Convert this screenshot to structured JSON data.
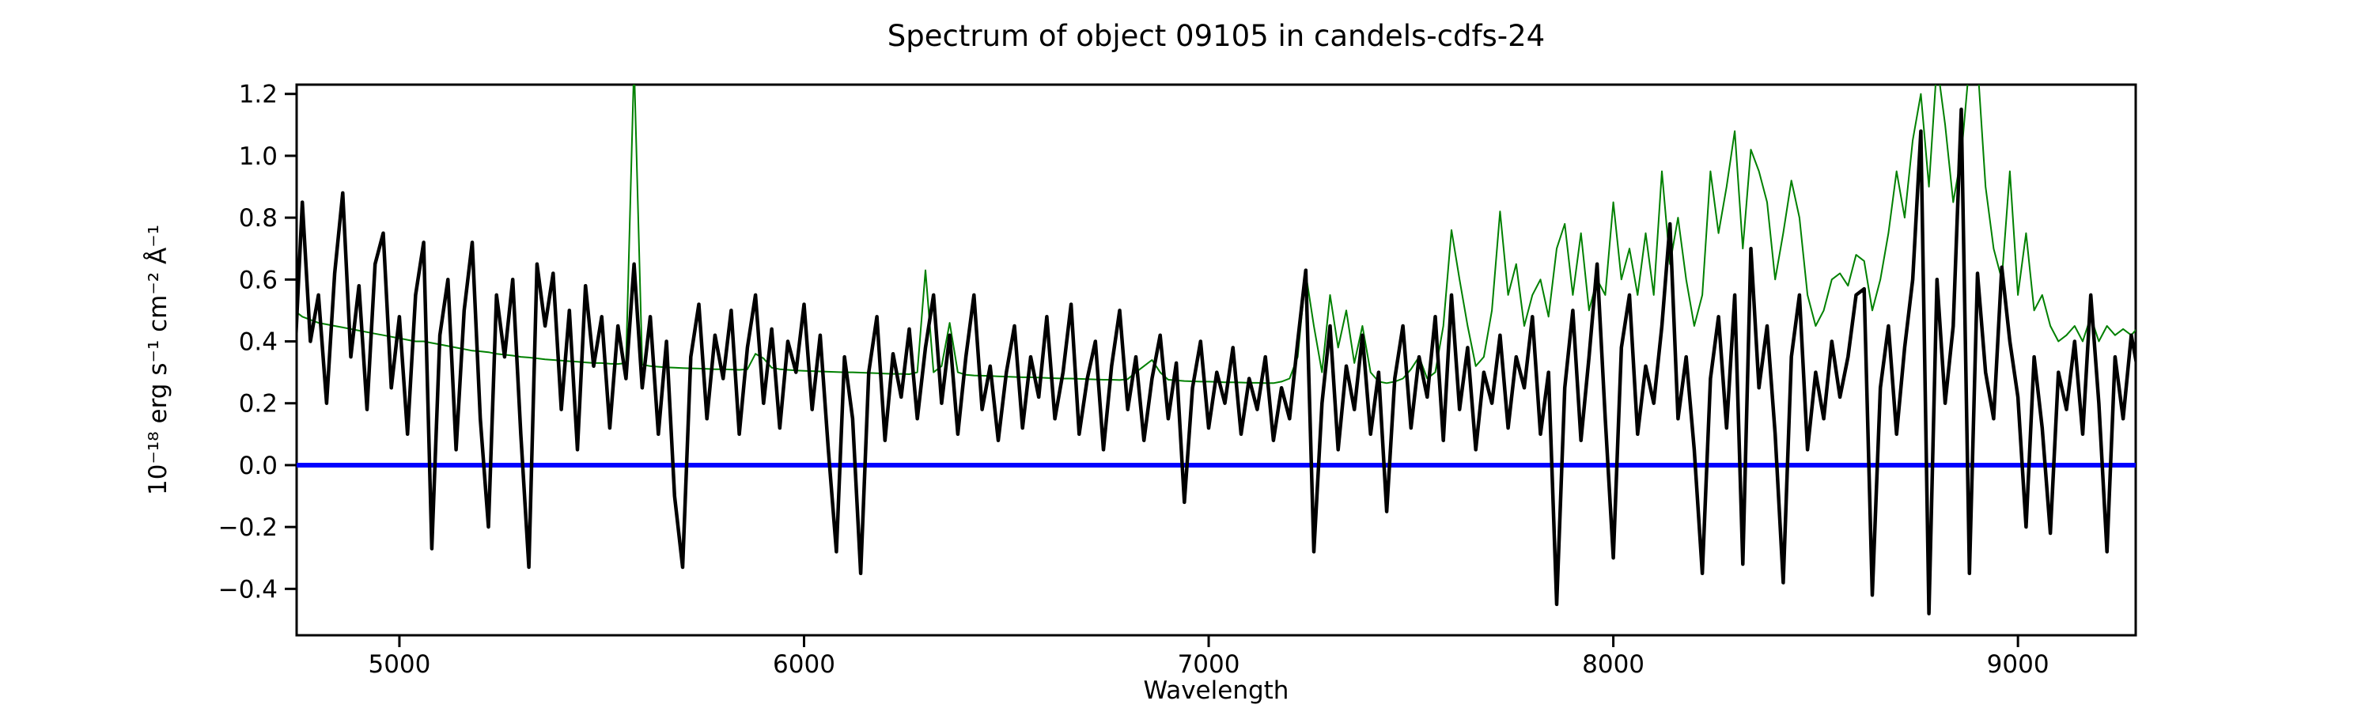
{
  "figure": {
    "title": "Spectrum of object 09105 in candels-cdfs-24"
  },
  "chart_data": {
    "type": "line",
    "title": "Spectrum of object 09105 in candels-cdfs-24",
    "xlabel": "Wavelength",
    "ylabel": "10⁻¹⁸ erg s⁻¹ cm⁻² Å⁻¹",
    "xlim": [
      4746,
      9291
    ],
    "ylim": [
      -0.55,
      1.23
    ],
    "x_ticks": [
      5000,
      6000,
      7000,
      8000,
      9000
    ],
    "x_tick_labels": [
      "5000",
      "6000",
      "7000",
      "8000",
      "9000"
    ],
    "y_ticks": [
      -0.4,
      -0.2,
      0,
      0.2,
      0.4,
      0.6,
      0.8,
      1,
      1.2
    ],
    "y_tick_labels": [
      "−0.4",
      "−0.2",
      "0.0",
      "0.2",
      "0.4",
      "0.6",
      "0.8",
      "1.0",
      "1.2"
    ],
    "grid": false,
    "legend": false,
    "background": "#ffffff",
    "wavelength_start": 4740,
    "wavelength_step": 20,
    "zero_line": {
      "y": 0,
      "color": "#0000ff",
      "linewidth": 6
    },
    "series": [
      {
        "name": "flux",
        "color": "#000000",
        "linewidth": 4.5,
        "values": [
          0.3,
          0.85,
          0.4,
          0.55,
          0.2,
          0.62,
          0.88,
          0.35,
          0.58,
          0.18,
          0.65,
          0.75,
          0.25,
          0.48,
          0.1,
          0.55,
          0.72,
          -0.27,
          0.42,
          0.6,
          0.05,
          0.5,
          0.72,
          0.15,
          -0.2,
          0.55,
          0.35,
          0.6,
          0.1,
          -0.33,
          0.65,
          0.45,
          0.62,
          0.18,
          0.5,
          0.05,
          0.58,
          0.32,
          0.48,
          0.12,
          0.45,
          0.28,
          0.65,
          0.25,
          0.48,
          0.1,
          0.4,
          -0.1,
          -0.33,
          0.35,
          0.52,
          0.15,
          0.42,
          0.28,
          0.5,
          0.1,
          0.38,
          0.55,
          0.2,
          0.44,
          0.12,
          0.4,
          0.3,
          0.52,
          0.18,
          0.42,
          0.05,
          -0.28,
          0.35,
          0.15,
          -0.35,
          0.3,
          0.48,
          0.08,
          0.36,
          0.22,
          0.44,
          0.15,
          0.38,
          0.55,
          0.2,
          0.42,
          0.1,
          0.35,
          0.55,
          0.18,
          0.32,
          0.08,
          0.3,
          0.45,
          0.12,
          0.35,
          0.22,
          0.48,
          0.15,
          0.3,
          0.52,
          0.1,
          0.28,
          0.4,
          0.05,
          0.32,
          0.5,
          0.18,
          0.35,
          0.08,
          0.28,
          0.42,
          0.15,
          0.33,
          -0.12,
          0.25,
          0.4,
          0.12,
          0.3,
          0.2,
          0.38,
          0.1,
          0.28,
          0.18,
          0.35,
          0.08,
          0.25,
          0.15,
          0.4,
          0.63,
          -0.28,
          0.2,
          0.45,
          0.05,
          0.32,
          0.18,
          0.42,
          0.1,
          0.3,
          -0.15,
          0.28,
          0.45,
          0.12,
          0.35,
          0.22,
          0.48,
          0.08,
          0.55,
          0.18,
          0.38,
          0.05,
          0.3,
          0.2,
          0.42,
          0.12,
          0.35,
          0.25,
          0.48,
          0.1,
          0.3,
          -0.45,
          0.25,
          0.5,
          0.08,
          0.35,
          0.65,
          0.15,
          -0.3,
          0.38,
          0.55,
          0.1,
          0.32,
          0.2,
          0.45,
          0.78,
          0.15,
          0.35,
          0.05,
          -0.35,
          0.28,
          0.48,
          0.12,
          0.55,
          -0.32,
          0.7,
          0.25,
          0.45,
          0.1,
          -0.38,
          0.35,
          0.55,
          0.05,
          0.3,
          0.15,
          0.4,
          0.22,
          0.35,
          0.55,
          0.57,
          -0.42,
          0.25,
          0.45,
          0.1,
          0.38,
          0.6,
          1.08,
          -0.48,
          0.6,
          0.2,
          0.45,
          1.15,
          -0.35,
          0.62,
          0.3,
          0.15,
          0.64,
          0.4,
          0.22,
          -0.2,
          0.35,
          0.12,
          -0.22,
          0.3,
          0.18,
          0.4,
          0.1,
          0.55,
          0.2,
          -0.28,
          0.35,
          0.15,
          0.42,
          0.28
        ]
      },
      {
        "name": "error",
        "color": "#008000",
        "linewidth": 2,
        "values": [
          0.5,
          0.48,
          0.47,
          0.46,
          0.455,
          0.45,
          0.445,
          0.44,
          0.435,
          0.43,
          0.425,
          0.42,
          0.415,
          0.41,
          0.405,
          0.4,
          0.4,
          0.395,
          0.39,
          0.385,
          0.38,
          0.375,
          0.37,
          0.368,
          0.365,
          0.36,
          0.357,
          0.354,
          0.35,
          0.348,
          0.345,
          0.342,
          0.34,
          0.338,
          0.336,
          0.334,
          0.332,
          0.33,
          0.33,
          0.328,
          0.327,
          0.33,
          1.3,
          0.325,
          0.32,
          0.318,
          0.316,
          0.315,
          0.314,
          0.313,
          0.312,
          0.311,
          0.31,
          0.31,
          0.309,
          0.308,
          0.31,
          0.36,
          0.345,
          0.315,
          0.31,
          0.308,
          0.306,
          0.305,
          0.304,
          0.303,
          0.302,
          0.301,
          0.3,
          0.3,
          0.299,
          0.298,
          0.297,
          0.296,
          0.295,
          0.295,
          0.294,
          0.3,
          0.63,
          0.3,
          0.32,
          0.46,
          0.3,
          0.292,
          0.29,
          0.289,
          0.288,
          0.287,
          0.286,
          0.285,
          0.284,
          0.284,
          0.283,
          0.282,
          0.281,
          0.28,
          0.28,
          0.279,
          0.278,
          0.277,
          0.276,
          0.276,
          0.275,
          0.278,
          0.3,
          0.32,
          0.34,
          0.3,
          0.276,
          0.274,
          0.272,
          0.271,
          0.27,
          0.27,
          0.269,
          0.268,
          0.268,
          0.267,
          0.266,
          0.266,
          0.265,
          0.265,
          0.27,
          0.28,
          0.35,
          0.62,
          0.45,
          0.3,
          0.55,
          0.38,
          0.5,
          0.33,
          0.45,
          0.3,
          0.27,
          0.265,
          0.27,
          0.28,
          0.31,
          0.35,
          0.28,
          0.3,
          0.45,
          0.76,
          0.6,
          0.45,
          0.32,
          0.35,
          0.5,
          0.82,
          0.55,
          0.65,
          0.45,
          0.55,
          0.6,
          0.48,
          0.7,
          0.78,
          0.55,
          0.75,
          0.5,
          0.6,
          0.55,
          0.85,
          0.6,
          0.7,
          0.55,
          0.75,
          0.55,
          0.95,
          0.65,
          0.8,
          0.6,
          0.45,
          0.55,
          0.95,
          0.75,
          0.9,
          1.08,
          0.7,
          1.02,
          0.95,
          0.85,
          0.6,
          0.75,
          0.92,
          0.8,
          0.55,
          0.45,
          0.5,
          0.6,
          0.62,
          0.58,
          0.68,
          0.66,
          0.5,
          0.6,
          0.75,
          0.95,
          0.8,
          1.05,
          1.2,
          0.9,
          1.3,
          1.1,
          0.85,
          1.0,
          1.3,
          1.3,
          0.9,
          0.7,
          0.6,
          0.95,
          0.55,
          0.75,
          0.5,
          0.55,
          0.45,
          0.4,
          0.42,
          0.45,
          0.4,
          0.48,
          0.4,
          0.45,
          0.42,
          0.44,
          0.42,
          0.45
        ]
      }
    ]
  }
}
